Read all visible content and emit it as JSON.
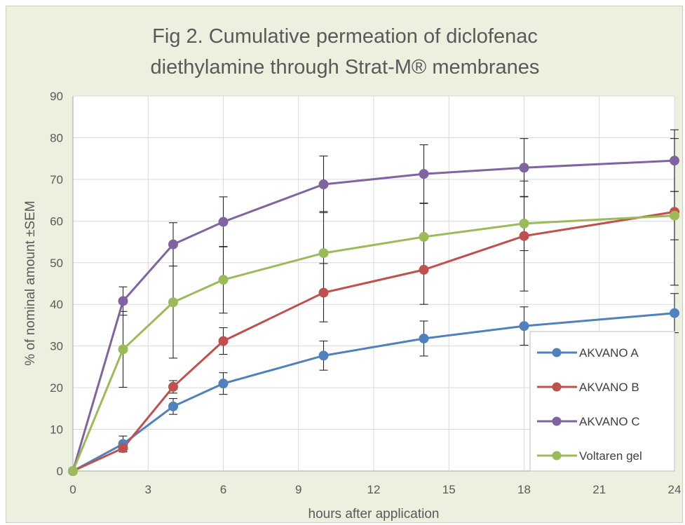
{
  "chart_data": {
    "type": "line",
    "title_lines": [
      "Fig 2. Cumulative permeation of diclofenac",
      "diethylamine through  Strat-M® membranes"
    ],
    "xlabel": "hours after application",
    "ylabel": "% of nominal amount ±SEM",
    "xlim": [
      0,
      24
    ],
    "ylim": [
      0,
      90
    ],
    "x_ticks": [
      0,
      3,
      6,
      9,
      12,
      15,
      18,
      21,
      24
    ],
    "y_ticks": [
      0,
      10,
      20,
      30,
      40,
      50,
      60,
      70,
      80,
      90
    ],
    "x_tick_labels": [
      "0",
      "3",
      "6",
      "9",
      "12",
      "15",
      "18",
      "21",
      "24"
    ],
    "y_tick_labels": [
      "0",
      "10",
      "20",
      "30",
      "40",
      "50",
      "60",
      "70",
      "80",
      "90"
    ],
    "grid": true,
    "legend_position": "bottom-right",
    "x": [
      0,
      2,
      4,
      6,
      10,
      14,
      18,
      24
    ],
    "series": [
      {
        "name": "AKVANO A",
        "color": "#4f81bd",
        "values": [
          0,
          6.5,
          15.5,
          21,
          27.7,
          31.8,
          34.8,
          37.9
        ],
        "errors": [
          0,
          1.9,
          1.9,
          2.6,
          3.5,
          4.2,
          4.6,
          4.7
        ]
      },
      {
        "name": "AKVANO B",
        "color": "#c0504d",
        "values": [
          0,
          5.5,
          20.2,
          31.2,
          42.8,
          48.3,
          56.4,
          62.2
        ],
        "errors": [
          0,
          0.9,
          1.5,
          3.2,
          7.0,
          8.3,
          13.2,
          17.6
        ]
      },
      {
        "name": "AKVANO C",
        "color": "#8064a2",
        "values": [
          0,
          40.8,
          54.4,
          59.8,
          68.8,
          71.3,
          72.8,
          74.5
        ],
        "errors": [
          0,
          3.4,
          5.2,
          6.0,
          6.8,
          7.0,
          7.0,
          7.4
        ]
      },
      {
        "name": "Voltaren gel",
        "color": "#9bbb59",
        "values": [
          0,
          29.2,
          40.5,
          45.9,
          52.3,
          56.2,
          59.4,
          61.3
        ],
        "errors": [
          0,
          9.1,
          13.4,
          8.0,
          10.0,
          8.0,
          6.5,
          5.8
        ]
      }
    ]
  }
}
